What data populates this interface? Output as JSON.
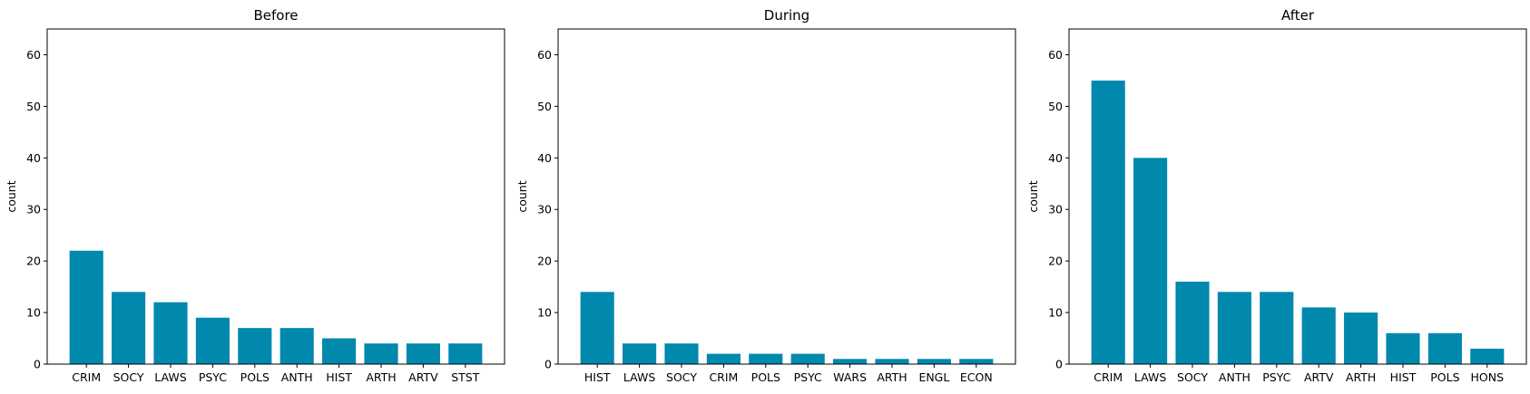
{
  "figure": {
    "bar_color": "#0088ad"
  },
  "chart_data": [
    {
      "type": "bar",
      "title": "Before",
      "xlabel": "",
      "ylabel": "count",
      "ylim": [
        0,
        65
      ],
      "yticks": [
        0,
        10,
        20,
        30,
        40,
        50,
        60
      ],
      "grid": false,
      "categories": [
        "CRIM",
        "SOCY",
        "LAWS",
        "PSYC",
        "POLS",
        "ANTH",
        "HIST",
        "ARTH",
        "ARTV",
        "STST"
      ],
      "values": [
        22,
        14,
        12,
        9,
        7,
        7,
        5,
        4,
        4,
        4
      ]
    },
    {
      "type": "bar",
      "title": "During",
      "xlabel": "",
      "ylabel": "count",
      "ylim": [
        0,
        65
      ],
      "yticks": [
        0,
        10,
        20,
        30,
        40,
        50,
        60
      ],
      "grid": false,
      "categories": [
        "HIST",
        "LAWS",
        "SOCY",
        "CRIM",
        "POLS",
        "PSYC",
        "WARS",
        "ARTH",
        "ENGL",
        "ECON"
      ],
      "values": [
        14,
        4,
        4,
        2,
        2,
        2,
        1,
        1,
        1,
        1
      ]
    },
    {
      "type": "bar",
      "title": "After",
      "xlabel": "",
      "ylabel": "count",
      "ylim": [
        0,
        65
      ],
      "yticks": [
        0,
        10,
        20,
        30,
        40,
        50,
        60
      ],
      "grid": false,
      "categories": [
        "CRIM",
        "LAWS",
        "SOCY",
        "ANTH",
        "PSYC",
        "ARTV",
        "ARTH",
        "HIST",
        "POLS",
        "HONS"
      ],
      "values": [
        55,
        40,
        16,
        14,
        14,
        11,
        10,
        6,
        6,
        3
      ]
    }
  ]
}
